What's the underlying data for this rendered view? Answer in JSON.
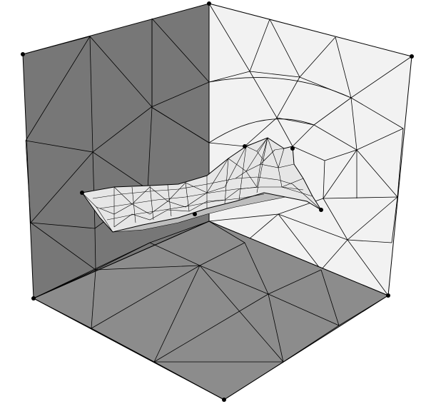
{
  "scene": {
    "kind": "3d-triangulated-mesh",
    "background_color": "#ffffff",
    "edge_color": "#000000",
    "vertex_color": "#000000",
    "faces": [
      {
        "name": "left-wall",
        "fill": "#777777"
      },
      {
        "name": "right-wall",
        "fill": "#f2f2f2"
      },
      {
        "name": "floor",
        "fill": "#8c8c8c"
      },
      {
        "name": "surface",
        "fill": "#e6e6e6"
      }
    ]
  }
}
